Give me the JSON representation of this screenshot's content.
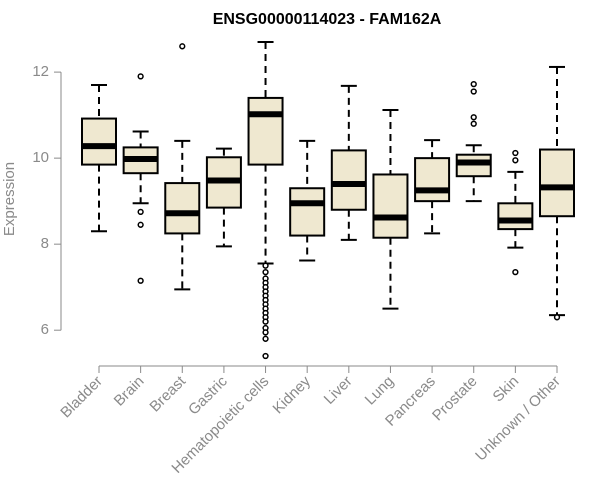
{
  "chart_data": {
    "type": "box",
    "title": "ENSG00000114023 - FAM162A",
    "xlabel": "",
    "ylabel": "Expression",
    "ylim": [
      5.4,
      12.7
    ],
    "yticks": [
      6,
      8,
      10,
      12
    ],
    "colors": {
      "box_fill": "#efe8d0",
      "box_stroke": "#000000",
      "axis": "#8a8a8a"
    },
    "categories": [
      {
        "label": "Bladder",
        "whisker_low": 8.3,
        "q1": 9.85,
        "median": 10.28,
        "q3": 10.92,
        "whisker_high": 11.7,
        "outliers": []
      },
      {
        "label": "Brain",
        "whisker_low": 8.95,
        "q1": 9.65,
        "median": 9.98,
        "q3": 10.25,
        "whisker_high": 10.62,
        "outliers": [
          11.9,
          8.75,
          8.45,
          7.15
        ]
      },
      {
        "label": "Breast",
        "whisker_low": 6.95,
        "q1": 8.25,
        "median": 8.72,
        "q3": 9.42,
        "whisker_high": 10.4,
        "outliers": [
          12.6
        ]
      },
      {
        "label": "Gastric",
        "whisker_low": 7.95,
        "q1": 8.85,
        "median": 9.48,
        "q3": 10.02,
        "whisker_high": 10.22,
        "outliers": []
      },
      {
        "label": "Hematopoietic cells",
        "whisker_low": 7.55,
        "q1": 9.85,
        "median": 11.02,
        "q3": 11.4,
        "whisker_high": 12.7,
        "outliers": [
          7.5,
          7.35,
          7.2,
          7.1,
          7.0,
          6.9,
          6.8,
          6.7,
          6.6,
          6.5,
          6.4,
          6.3,
          6.2,
          6.05,
          5.95,
          5.8,
          5.4
        ]
      },
      {
        "label": "Kidney",
        "whisker_low": 7.62,
        "q1": 8.2,
        "median": 8.95,
        "q3": 9.3,
        "whisker_high": 10.4,
        "outliers": []
      },
      {
        "label": "Liver",
        "whisker_low": 8.1,
        "q1": 8.8,
        "median": 9.4,
        "q3": 10.18,
        "whisker_high": 11.68,
        "outliers": []
      },
      {
        "label": "Lung",
        "whisker_low": 6.5,
        "q1": 8.15,
        "median": 8.62,
        "q3": 9.62,
        "whisker_high": 11.12,
        "outliers": []
      },
      {
        "label": "Pancreas",
        "whisker_low": 8.25,
        "q1": 9.0,
        "median": 9.25,
        "q3": 10.0,
        "whisker_high": 10.42,
        "outliers": []
      },
      {
        "label": "Prostate",
        "whisker_low": 9.0,
        "q1": 9.58,
        "median": 9.9,
        "q3": 10.08,
        "whisker_high": 10.3,
        "outliers": [
          11.72,
          11.55,
          10.95,
          10.8
        ]
      },
      {
        "label": "Skin",
        "whisker_low": 7.92,
        "q1": 8.35,
        "median": 8.55,
        "q3": 8.95,
        "whisker_high": 9.68,
        "outliers": [
          10.12,
          9.95,
          7.35
        ]
      },
      {
        "label": "Unknown / Other",
        "whisker_low": 6.35,
        "q1": 8.65,
        "median": 9.32,
        "q3": 10.2,
        "whisker_high": 12.12,
        "outliers": [
          6.3
        ]
      }
    ]
  }
}
